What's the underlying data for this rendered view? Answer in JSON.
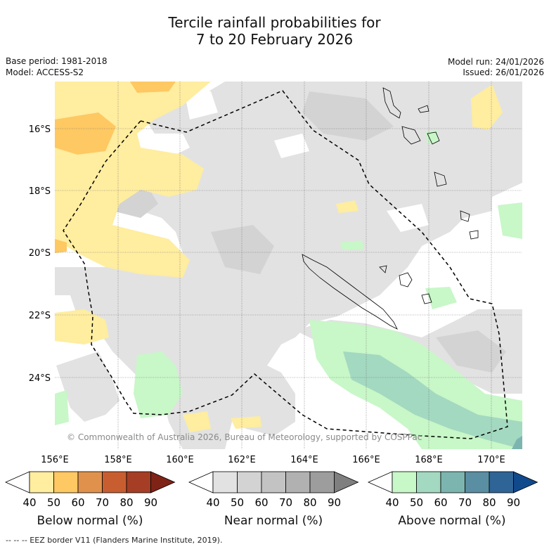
{
  "title": {
    "line1": "Tercile rainfall probabilities for",
    "line2": "7 to 20 February 2026"
  },
  "meta": {
    "base_period": "Base period: 1981-2018",
    "model": "Model: ACCESS-S2",
    "model_run": "Model run: 24/01/2026",
    "issued": "Issued: 26/01/2026"
  },
  "map": {
    "lat_labels": [
      "16°S",
      "18°S",
      "20°S",
      "22°S",
      "24°S"
    ],
    "lon_labels": [
      "156°E",
      "158°E",
      "160°E",
      "162°E",
      "164°E",
      "166°E",
      "168°E",
      "170°E"
    ],
    "copyright": "© Commonwealth of Australia 2026, Bureau of Meteorology, supported by COSPPac"
  },
  "legend": {
    "below": {
      "title": "Below normal (%)",
      "colors": [
        "#ffffff",
        "#ffeda0",
        "#fec862",
        "#e0924d",
        "#c85e30",
        "#a53e25",
        "#7f2316"
      ],
      "ticks": [
        "40",
        "50",
        "60",
        "70",
        "80",
        "90"
      ]
    },
    "near": {
      "title": "Near normal (%)",
      "colors": [
        "#ffffff",
        "#e2e2e2",
        "#d3d3d3",
        "#c3c3c3",
        "#b1b1b1",
        "#9d9d9d",
        "#7f7f7f"
      ],
      "ticks": [
        "40",
        "50",
        "60",
        "70",
        "80",
        "90"
      ]
    },
    "above": {
      "title": "Above normal (%)",
      "colors": [
        "#ffffff",
        "#c8f7c8",
        "#a3d9c0",
        "#7cb5b0",
        "#5a8ea2",
        "#2f6497",
        "#114a8c"
      ],
      "ticks": [
        "40",
        "50",
        "60",
        "70",
        "80",
        "90"
      ]
    }
  },
  "footer": "-- -- -- EEZ border V11 (Flanders Marine Institute, 2019)."
}
